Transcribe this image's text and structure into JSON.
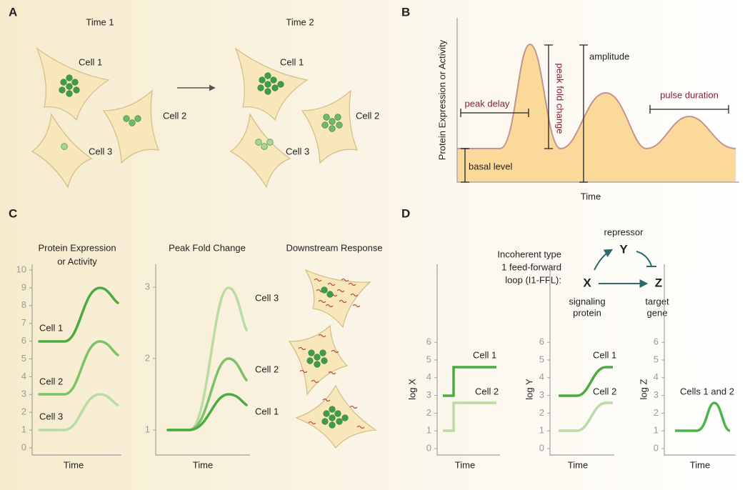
{
  "panels": {
    "a": "A",
    "b": "B",
    "c": "C",
    "d": "D"
  },
  "panel_a": {
    "time_1": "Time 1",
    "time_2": "Time 2",
    "cell_labels": [
      "Cell 1",
      "Cell 2",
      "Cell 3"
    ]
  },
  "panel_b": {
    "y_label": "Protein Expression or Activity",
    "x_label": "Time",
    "annotations": {
      "peak_delay": "peak delay",
      "peak_fold_change": "peak fold change",
      "amplitude": "amplitude",
      "pulse_duration": "pulse duration",
      "basal_level": "basal level"
    }
  },
  "panel_c": {
    "plots": [
      {
        "title_lines": [
          "Protein Expression",
          "or Activity"
        ],
        "x_label": "Time",
        "yticks": [
          0,
          1,
          2,
          3,
          4,
          5,
          6,
          7,
          8,
          9,
          10
        ],
        "series_labels": [
          "Cell 1",
          "Cell 2",
          "Cell 3"
        ]
      },
      {
        "title_lines": [
          "Peak Fold Change"
        ],
        "x_label": "Time",
        "yticks": [
          1,
          2,
          3
        ],
        "series_labels": [
          "Cell 3",
          "Cell 2",
          "Cell 1"
        ]
      },
      {
        "title_lines": [
          "Downstream Response"
        ]
      }
    ]
  },
  "panel_d": {
    "circuit": {
      "description": [
        "Incoherent type",
        "1 feed-forward",
        "loop (I1-FFL):"
      ],
      "nodes": [
        {
          "label": "X",
          "caption": [
            "signaling",
            "protein"
          ]
        },
        {
          "label": "Y",
          "caption": [
            "repressor"
          ]
        },
        {
          "label": "Z",
          "caption": [
            "target",
            "gene"
          ]
        }
      ]
    },
    "plots": [
      {
        "y_label": "log X",
        "x_label": "Time",
        "yticks": [
          0,
          1,
          2,
          3,
          4,
          5,
          6
        ],
        "series_labels": [
          "Cell 1",
          "Cell 2"
        ]
      },
      {
        "y_label": "log Y",
        "x_label": "Time",
        "yticks": [
          0,
          1,
          2,
          3,
          4,
          5,
          6
        ],
        "series_labels": [
          "Cell 1",
          "Cell 2"
        ]
      },
      {
        "y_label": "log Z",
        "x_label": "Time",
        "yticks": [
          0,
          1,
          2,
          3,
          4,
          5,
          6
        ],
        "series_labels": [
          "Cells 1 and 2"
        ]
      }
    ]
  }
}
